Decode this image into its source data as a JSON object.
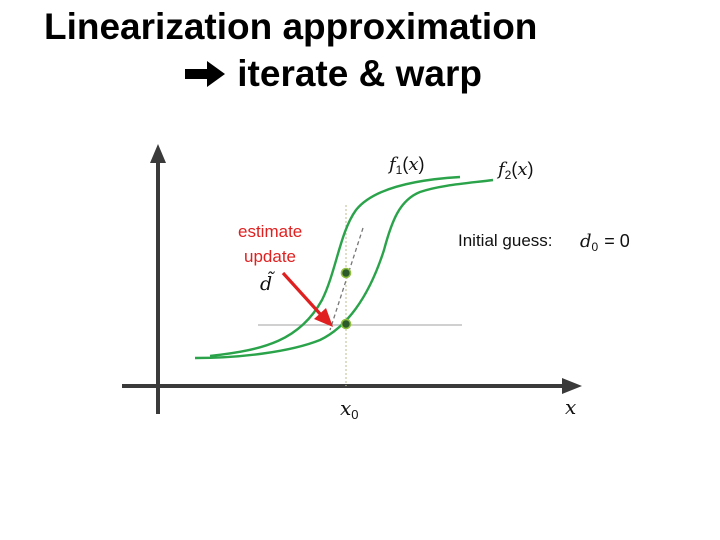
{
  "title": {
    "line1": "Linearization approximation",
    "arrow_icon": "right-arrow-icon",
    "line2": "iterate & warp"
  },
  "diagram": {
    "curve1_label": "f1(x)",
    "curve2_label": "f2(x)",
    "estimate_label_line1": "estimate",
    "estimate_label_line2": "update",
    "update_symbol": "d̃",
    "initial_guess_text": "Initial guess:",
    "initial_guess_expr": "d0 = 0",
    "x0_label": "x0",
    "x_axis_label": "x",
    "colors": {
      "curve": "#2aa34a",
      "annotation": "#e02020",
      "guide": "#c8c8a0",
      "axis": "#3a3a3a"
    }
  }
}
